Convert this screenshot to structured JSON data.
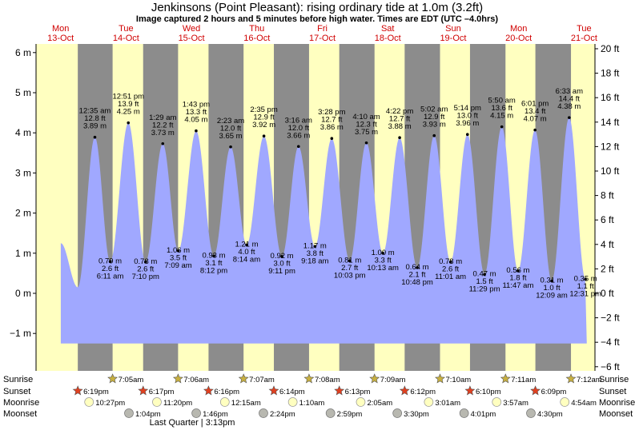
{
  "header": {
    "title": "Jenkinsons (Point Pleasant): rising  ordinary tide at 1.0m (3.2ft)",
    "subtitle": "Image captured 2 hours and 5 minutes before high water. Times are EDT (UTC –4.0hrs)"
  },
  "days": [
    {
      "dow": "Mon",
      "date": "13-Oct"
    },
    {
      "dow": "Tue",
      "date": "14-Oct"
    },
    {
      "dow": "Wed",
      "date": "15-Oct"
    },
    {
      "dow": "Thu",
      "date": "16-Oct"
    },
    {
      "dow": "Fri",
      "date": "17-Oct"
    },
    {
      "dow": "Sat",
      "date": "18-Oct"
    },
    {
      "dow": "Sun",
      "date": "19-Oct"
    },
    {
      "dow": "Mon",
      "date": "20-Oct"
    },
    {
      "dow": "Tue",
      "date": "21-Oct"
    }
  ],
  "row_labels": {
    "sunrise": "Sunrise",
    "sunset": "Sunset",
    "moonrise": "Moonrise",
    "moonset": "Moonset"
  },
  "moon_phase": "Last Quarter | 3:13pm",
  "chart_data": {
    "type": "area",
    "title": "Jenkinsons (Point Pleasant): rising  ordinary tide at 1.0m (3.2ft)",
    "xlabel": "",
    "ylabel": "",
    "y_left_unit": "m",
    "y_left_range": [
      -1.3,
      6.1
    ],
    "y_left_ticks": [
      "−1 m",
      "0 m",
      "1 m",
      "2 m",
      "3 m",
      "4 m",
      "5 m",
      "6 m"
    ],
    "y_right_unit": "ft",
    "y_right_ticks": [
      "−6 ft",
      "−4 ft",
      "−2 ft",
      "0 ft",
      "2 ft",
      "4 ft",
      "6 ft",
      "8 ft",
      "10 ft",
      "12 ft",
      "14 ft",
      "16 ft",
      "18 ft",
      "20 ft"
    ],
    "chart_start": "2025-10-13 03:00",
    "chart_end": "2025-10-21 16:00",
    "displayed_data_range": [
      "2025-10-13 12:05",
      "2025-10-21 13:00"
    ],
    "tides": [
      {
        "time": "2025-10-14 00:35",
        "display_time": "12:35 am",
        "ft": "12.8 ft",
        "m": 3.89,
        "label": "3.89 m",
        "type": "high"
      },
      {
        "time": "2025-10-14 06:11",
        "display_time": "6:11 am",
        "ft": "2.6 ft",
        "m": 0.79,
        "label": "0.79 m",
        "type": "low"
      },
      {
        "time": "2025-10-14 12:51",
        "display_time": "12:51 pm",
        "ft": "13.9 ft",
        "m": 4.25,
        "label": "4.25 m",
        "type": "high"
      },
      {
        "time": "2025-10-14 19:10",
        "display_time": "7:10 pm",
        "ft": "2.6 ft",
        "m": 0.78,
        "label": "0.78 m",
        "type": "low"
      },
      {
        "time": "2025-10-15 01:29",
        "display_time": "1:29 am",
        "ft": "12.2 ft",
        "m": 3.73,
        "label": "3.73 m",
        "type": "high"
      },
      {
        "time": "2025-10-15 07:09",
        "display_time": "7:09 am",
        "ft": "3.5 ft",
        "m": 1.06,
        "label": "1.06 m",
        "type": "low"
      },
      {
        "time": "2025-10-15 13:43",
        "display_time": "1:43 pm",
        "ft": "13.3 ft",
        "m": 4.05,
        "label": "4.05 m",
        "type": "high"
      },
      {
        "time": "2025-10-15 20:12",
        "display_time": "8:12 pm",
        "ft": "3.1 ft",
        "m": 0.93,
        "label": "0.93 m",
        "type": "low"
      },
      {
        "time": "2025-10-16 02:23",
        "display_time": "2:23 am",
        "ft": "12.0 ft",
        "m": 3.65,
        "label": "3.65 m",
        "type": "high"
      },
      {
        "time": "2025-10-16 08:14",
        "display_time": "8:14 am",
        "ft": "4.0 ft",
        "m": 1.21,
        "label": "1.21 m",
        "type": "low"
      },
      {
        "time": "2025-10-16 14:35",
        "display_time": "2:35 pm",
        "ft": "12.9 ft",
        "m": 3.92,
        "label": "3.92 m",
        "type": "high"
      },
      {
        "time": "2025-10-16 21:11",
        "display_time": "9:11 pm",
        "ft": "3.0 ft",
        "m": 0.92,
        "label": "0.92 m",
        "type": "low"
      },
      {
        "time": "2025-10-17 03:16",
        "display_time": "3:16 am",
        "ft": "12.0 ft",
        "m": 3.66,
        "label": "3.66 m",
        "type": "high"
      },
      {
        "time": "2025-10-17 09:18",
        "display_time": "9:18 am",
        "ft": "3.8 ft",
        "m": 1.17,
        "label": "1.17 m",
        "type": "low"
      },
      {
        "time": "2025-10-17 15:28",
        "display_time": "3:28 pm",
        "ft": "12.7 ft",
        "m": 3.86,
        "label": "3.86 m",
        "type": "high"
      },
      {
        "time": "2025-10-17 22:03",
        "display_time": "10:03 pm",
        "ft": "2.7 ft",
        "m": 0.81,
        "label": "0.81 m",
        "type": "low"
      },
      {
        "time": "2025-10-18 04:10",
        "display_time": "4:10 am",
        "ft": "12.3 ft",
        "m": 3.75,
        "label": "3.75 m",
        "type": "high"
      },
      {
        "time": "2025-10-18 10:13",
        "display_time": "10:13 am",
        "ft": "3.3 ft",
        "m": 1.0,
        "label": "1.00 m",
        "type": "low"
      },
      {
        "time": "2025-10-18 16:22",
        "display_time": "4:22 pm",
        "ft": "12.7 ft",
        "m": 3.88,
        "label": "3.88 m",
        "type": "high"
      },
      {
        "time": "2025-10-18 22:48",
        "display_time": "10:48 pm",
        "ft": "2.1 ft",
        "m": 0.64,
        "label": "0.64 m",
        "type": "low"
      },
      {
        "time": "2025-10-19 05:02",
        "display_time": "5:02 am",
        "ft": "12.9 ft",
        "m": 3.93,
        "label": "3.93 m",
        "type": "high"
      },
      {
        "time": "2025-10-19 11:01",
        "display_time": "11:01 am",
        "ft": "2.6 ft",
        "m": 0.78,
        "label": "0.78 m",
        "type": "low"
      },
      {
        "time": "2025-10-19 17:14",
        "display_time": "5:14 pm",
        "ft": "13.0 ft",
        "m": 3.96,
        "label": "3.96 m",
        "type": "high"
      },
      {
        "time": "2025-10-19 23:29",
        "display_time": "11:29 pm",
        "ft": "1.5 ft",
        "m": 0.47,
        "label": "0.47 m",
        "type": "low"
      },
      {
        "time": "2025-10-20 05:50",
        "display_time": "5:50 am",
        "ft": "13.6 ft",
        "m": 4.15,
        "label": "4.15 m",
        "type": "high"
      },
      {
        "time": "2025-10-20 11:47",
        "display_time": "11:47 am",
        "ft": "1.8 ft",
        "m": 0.56,
        "label": "0.56 m",
        "type": "low"
      },
      {
        "time": "2025-10-20 18:01",
        "display_time": "6:01 pm",
        "ft": "13.4 ft",
        "m": 4.07,
        "label": "4.07 m",
        "type": "high"
      },
      {
        "time": "2025-10-21 00:09",
        "display_time": "12:09 am",
        "ft": "1.0 ft",
        "m": 0.31,
        "label": "0.31 m",
        "type": "low"
      },
      {
        "time": "2025-10-21 06:33",
        "display_time": "6:33 am",
        "ft": "14.4 ft",
        "m": 4.38,
        "label": "4.38 m",
        "type": "high"
      },
      {
        "time": "2025-10-21 12:31",
        "display_time": "12:31 pm",
        "ft": "1.1 ft",
        "m": 0.35,
        "label": "0.35 m",
        "type": "low"
      }
    ],
    "sunrise": [
      {
        "time": "2025-10-14 07:05",
        "label": "7:05am"
      },
      {
        "time": "2025-10-15 07:06",
        "label": "7:06am"
      },
      {
        "time": "2025-10-16 07:07",
        "label": "7:07am"
      },
      {
        "time": "2025-10-17 07:08",
        "label": "7:08am"
      },
      {
        "time": "2025-10-18 07:09",
        "label": "7:09am"
      },
      {
        "time": "2025-10-19 07:10",
        "label": "7:10am"
      },
      {
        "time": "2025-10-20 07:11",
        "label": "7:11am"
      },
      {
        "time": "2025-10-21 07:12",
        "label": "7:12am"
      }
    ],
    "sunset": [
      {
        "time": "2025-10-13 18:19",
        "label": "6:19pm"
      },
      {
        "time": "2025-10-14 18:17",
        "label": "6:17pm"
      },
      {
        "time": "2025-10-15 18:16",
        "label": "6:16pm"
      },
      {
        "time": "2025-10-16 18:14",
        "label": "6:14pm"
      },
      {
        "time": "2025-10-17 18:13",
        "label": "6:13pm"
      },
      {
        "time": "2025-10-18 18:12",
        "label": "6:12pm"
      },
      {
        "time": "2025-10-19 18:10",
        "label": "6:10pm"
      },
      {
        "time": "2025-10-20 18:09",
        "label": "6:09pm"
      }
    ],
    "moonrise": [
      {
        "time": "2025-10-13 22:27",
        "label": "10:27pm"
      },
      {
        "time": "2025-10-14 23:20",
        "label": "11:20pm"
      },
      {
        "time": "2025-10-16 00:15",
        "label": "12:15am"
      },
      {
        "time": "2025-10-17 01:10",
        "label": "1:10am"
      },
      {
        "time": "2025-10-18 02:05",
        "label": "2:05am"
      },
      {
        "time": "2025-10-19 03:01",
        "label": "3:01am"
      },
      {
        "time": "2025-10-20 03:57",
        "label": "3:57am"
      },
      {
        "time": "2025-10-21 04:54",
        "label": "4:54am"
      }
    ],
    "moonset": [
      {
        "time": "2025-10-14 13:04",
        "label": "1:04pm"
      },
      {
        "time": "2025-10-15 13:46",
        "label": "1:46pm"
      },
      {
        "time": "2025-10-16 14:24",
        "label": "2:24pm"
      },
      {
        "time": "2025-10-17 14:59",
        "label": "2:59pm"
      },
      {
        "time": "2025-10-18 15:30",
        "label": "3:30pm"
      },
      {
        "time": "2025-10-19 16:01",
        "label": "4:01pm"
      },
      {
        "time": "2025-10-20 16:30",
        "label": "4:30pm"
      }
    ],
    "colors": {
      "day": "#ffffc0",
      "night": "#8c8c8c",
      "water": "#a0a8ff",
      "sunrise_star": "#c8b040",
      "sunset_star": "#e04020",
      "moonrise": "#ffffc0",
      "moonset": "#b8b8b0",
      "day_label": "#d00000"
    },
    "grid": false
  }
}
